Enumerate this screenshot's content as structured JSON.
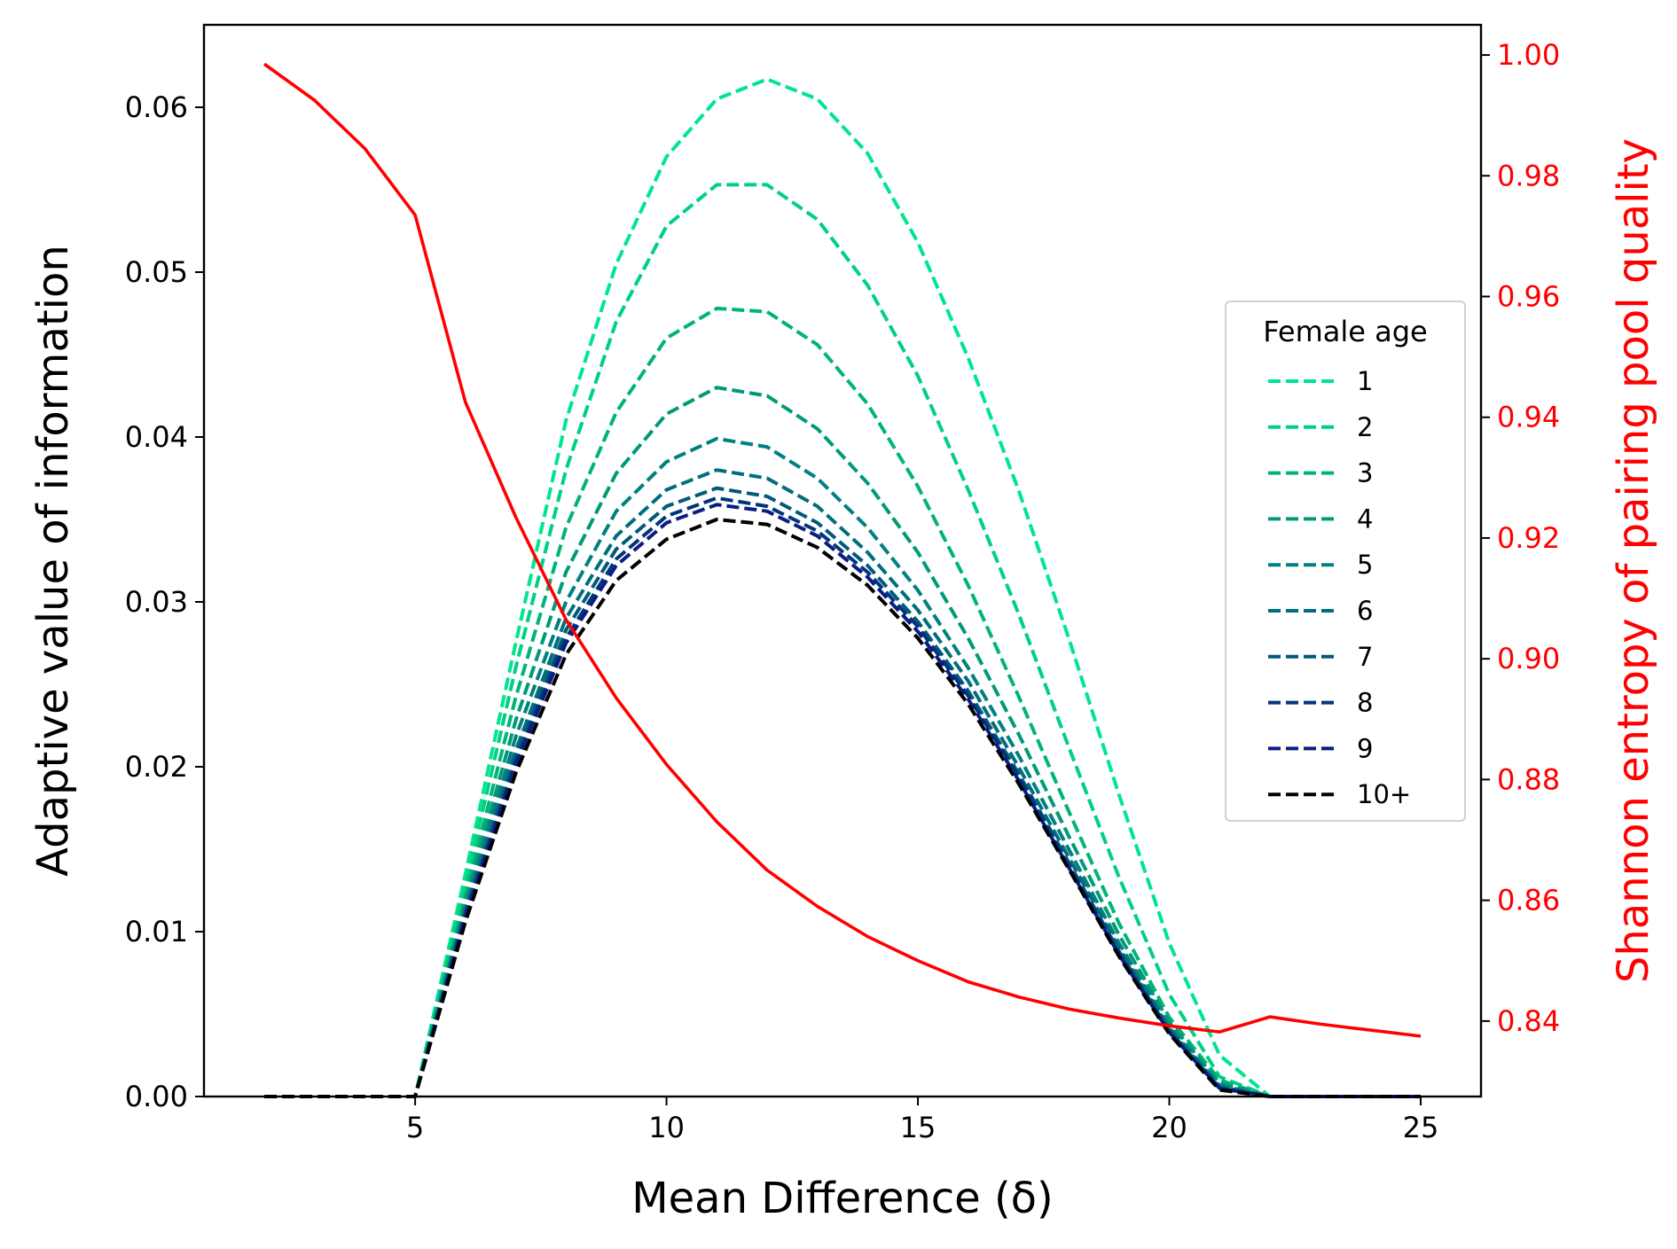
{
  "chart_data": {
    "type": "line",
    "title": "",
    "xlabel": "Mean Difference (δ)",
    "ylabel": "Adaptive value of information",
    "ylabel_right": "Shannon entropy of pairing pool quality",
    "xlim": [
      0.8,
      26.2
    ],
    "ylim": [
      0,
      0.065
    ],
    "ylim_right": [
      0.8275,
      1.005
    ],
    "x_ticks": [
      5,
      10,
      15,
      20,
      25
    ],
    "y_ticks": [
      0.0,
      0.01,
      0.02,
      0.03,
      0.04,
      0.05,
      0.06
    ],
    "y_ticks_right": [
      0.84,
      0.86,
      0.88,
      0.9,
      0.92,
      0.94,
      0.96,
      0.98,
      1.0
    ],
    "grid": false,
    "legend": {
      "title": "Female age",
      "placement": "center-right"
    },
    "colors": {
      "entropy": "#ff0000",
      "right_axis": "#ff0000"
    },
    "x": [
      2,
      3,
      4,
      5,
      6,
      7,
      8,
      9,
      10,
      11,
      12,
      13,
      14,
      15,
      16,
      17,
      18,
      19,
      20,
      21,
      22,
      23,
      24,
      25
    ],
    "series": [
      {
        "name": "1",
        "color": "#00e68c",
        "axis": "left",
        "dashed": true,
        "values": [
          0,
          0,
          0,
          0,
          0.0135,
          0.0275,
          0.041,
          0.0505,
          0.057,
          0.0605,
          0.0617,
          0.0605,
          0.0572,
          0.0518,
          0.0448,
          0.0368,
          0.0278,
          0.0183,
          0.0093,
          0.0025,
          0,
          0,
          0,
          0
        ]
      },
      {
        "name": "2",
        "color": "#00d084",
        "axis": "left",
        "dashed": true,
        "values": [
          0,
          0,
          0,
          0,
          0.0128,
          0.026,
          0.038,
          0.047,
          0.0528,
          0.0553,
          0.0553,
          0.0532,
          0.0492,
          0.0437,
          0.0368,
          0.0293,
          0.0212,
          0.0133,
          0.0062,
          0.0012,
          0,
          0,
          0,
          0
        ]
      },
      {
        "name": "3",
        "color": "#00b478",
        "axis": "left",
        "dashed": true,
        "values": [
          0,
          0,
          0,
          0,
          0.0122,
          0.0242,
          0.0345,
          0.0415,
          0.046,
          0.0478,
          0.0476,
          0.0456,
          0.042,
          0.037,
          0.031,
          0.0243,
          0.0173,
          0.0105,
          0.0048,
          0.001,
          0,
          0,
          0,
          0
        ]
      },
      {
        "name": "4",
        "color": "#009a78",
        "axis": "left",
        "dashed": true,
        "values": [
          0,
          0,
          0,
          0,
          0.0118,
          0.0228,
          0.0318,
          0.0378,
          0.0414,
          0.043,
          0.0425,
          0.0405,
          0.0372,
          0.033,
          0.0278,
          0.022,
          0.0158,
          0.0098,
          0.0045,
          0.0008,
          0,
          0,
          0,
          0
        ]
      },
      {
        "name": "5",
        "color": "#008080",
        "axis": "left",
        "dashed": true,
        "values": [
          0,
          0,
          0,
          0,
          0.0115,
          0.0218,
          0.03,
          0.0355,
          0.0385,
          0.0399,
          0.0394,
          0.0375,
          0.0345,
          0.0307,
          0.026,
          0.0207,
          0.015,
          0.0093,
          0.0042,
          0.0007,
          0,
          0,
          0,
          0
        ]
      },
      {
        "name": "6",
        "color": "#006e7d",
        "axis": "left",
        "dashed": true,
        "values": [
          0,
          0,
          0,
          0,
          0.0113,
          0.021,
          0.029,
          0.034,
          0.0368,
          0.038,
          0.0375,
          0.0358,
          0.033,
          0.0295,
          0.0252,
          0.02,
          0.0145,
          0.009,
          0.0041,
          0.0006,
          0,
          0,
          0,
          0
        ]
      },
      {
        "name": "7",
        "color": "#005a7a",
        "axis": "left",
        "dashed": true,
        "values": [
          0,
          0,
          0,
          0,
          0.0111,
          0.0206,
          0.0283,
          0.0332,
          0.0358,
          0.0369,
          0.0364,
          0.0348,
          0.0322,
          0.0288,
          0.0246,
          0.0196,
          0.0142,
          0.0088,
          0.004,
          0.0005,
          0,
          0,
          0,
          0
        ]
      },
      {
        "name": "8",
        "color": "#00357c",
        "axis": "left",
        "dashed": true,
        "values": [
          0,
          0,
          0,
          0,
          0.011,
          0.0203,
          0.0278,
          0.0326,
          0.0352,
          0.0363,
          0.0358,
          0.0343,
          0.0318,
          0.0285,
          0.0243,
          0.0194,
          0.014,
          0.0087,
          0.0039,
          0.0005,
          0,
          0,
          0,
          0
        ]
      },
      {
        "name": "9",
        "color": "#0a1e82",
        "axis": "left",
        "dashed": true,
        "values": [
          0,
          0,
          0,
          0,
          0.0109,
          0.0201,
          0.0275,
          0.0322,
          0.0348,
          0.0359,
          0.0355,
          0.034,
          0.0315,
          0.0282,
          0.0241,
          0.0192,
          0.0139,
          0.0086,
          0.0039,
          0.0005,
          0,
          0,
          0,
          0
        ]
      },
      {
        "name": "10+",
        "color": "#000000",
        "axis": "left",
        "dashed": true,
        "values": [
          0,
          0,
          0,
          0,
          0.0106,
          0.0196,
          0.0268,
          0.0313,
          0.0338,
          0.035,
          0.0347,
          0.0333,
          0.031,
          0.0278,
          0.0238,
          0.019,
          0.0138,
          0.0085,
          0.0038,
          0.0004,
          0,
          0,
          0,
          0
        ]
      },
      {
        "name": "",
        "color": "#ff0000",
        "axis": "right",
        "dashed": false,
        "values": [
          0.9985,
          0.9925,
          0.9845,
          0.9735,
          0.9425,
          0.9235,
          0.9065,
          0.8935,
          0.8825,
          0.873,
          0.865,
          0.859,
          0.854,
          0.85,
          0.8465,
          0.844,
          0.842,
          0.8405,
          0.8392,
          0.8382,
          0.8407,
          0.8395,
          0.8385,
          0.8375
        ]
      }
    ]
  }
}
